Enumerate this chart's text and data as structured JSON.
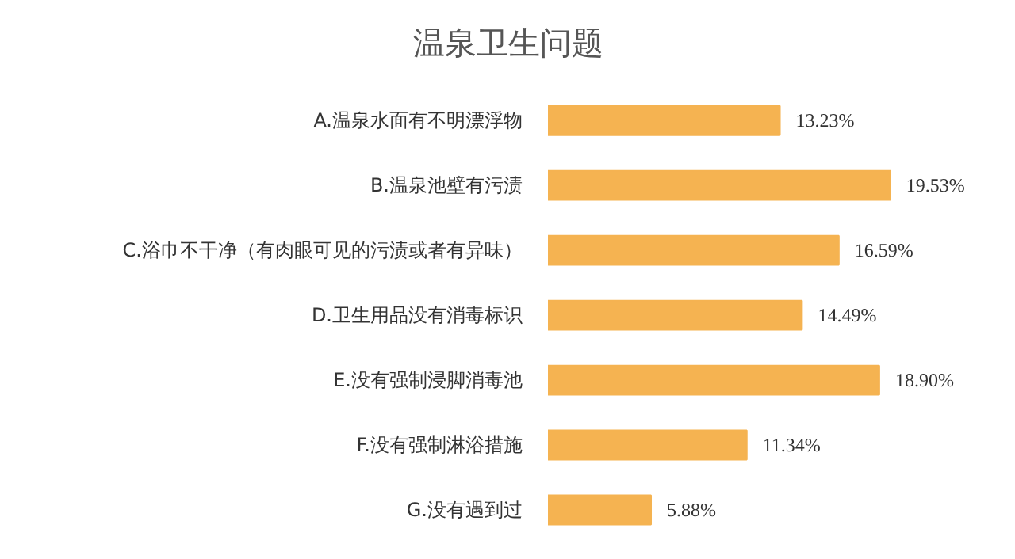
{
  "chart_data": {
    "type": "bar",
    "orientation": "horizontal",
    "title": "温泉卫生问题",
    "categories": [
      "A.温泉水面有不明漂浮物",
      "B.温泉池壁有污渍",
      "C.浴巾不干净（有肉眼可见的污渍或者有异味）",
      "D.卫生用品没有消毒标识",
      "E.没有强制浸脚消毒池",
      "F.没有强制淋浴措施",
      "G.没有遇到过"
    ],
    "values": [
      13.23,
      19.53,
      16.59,
      14.49,
      18.9,
      11.34,
      5.88
    ],
    "value_labels": [
      "13.23%",
      "19.53%",
      "16.59%",
      "14.49%",
      "18.90%",
      "11.34%",
      "5.88%"
    ],
    "color": "#f5b351",
    "grid": false
  }
}
